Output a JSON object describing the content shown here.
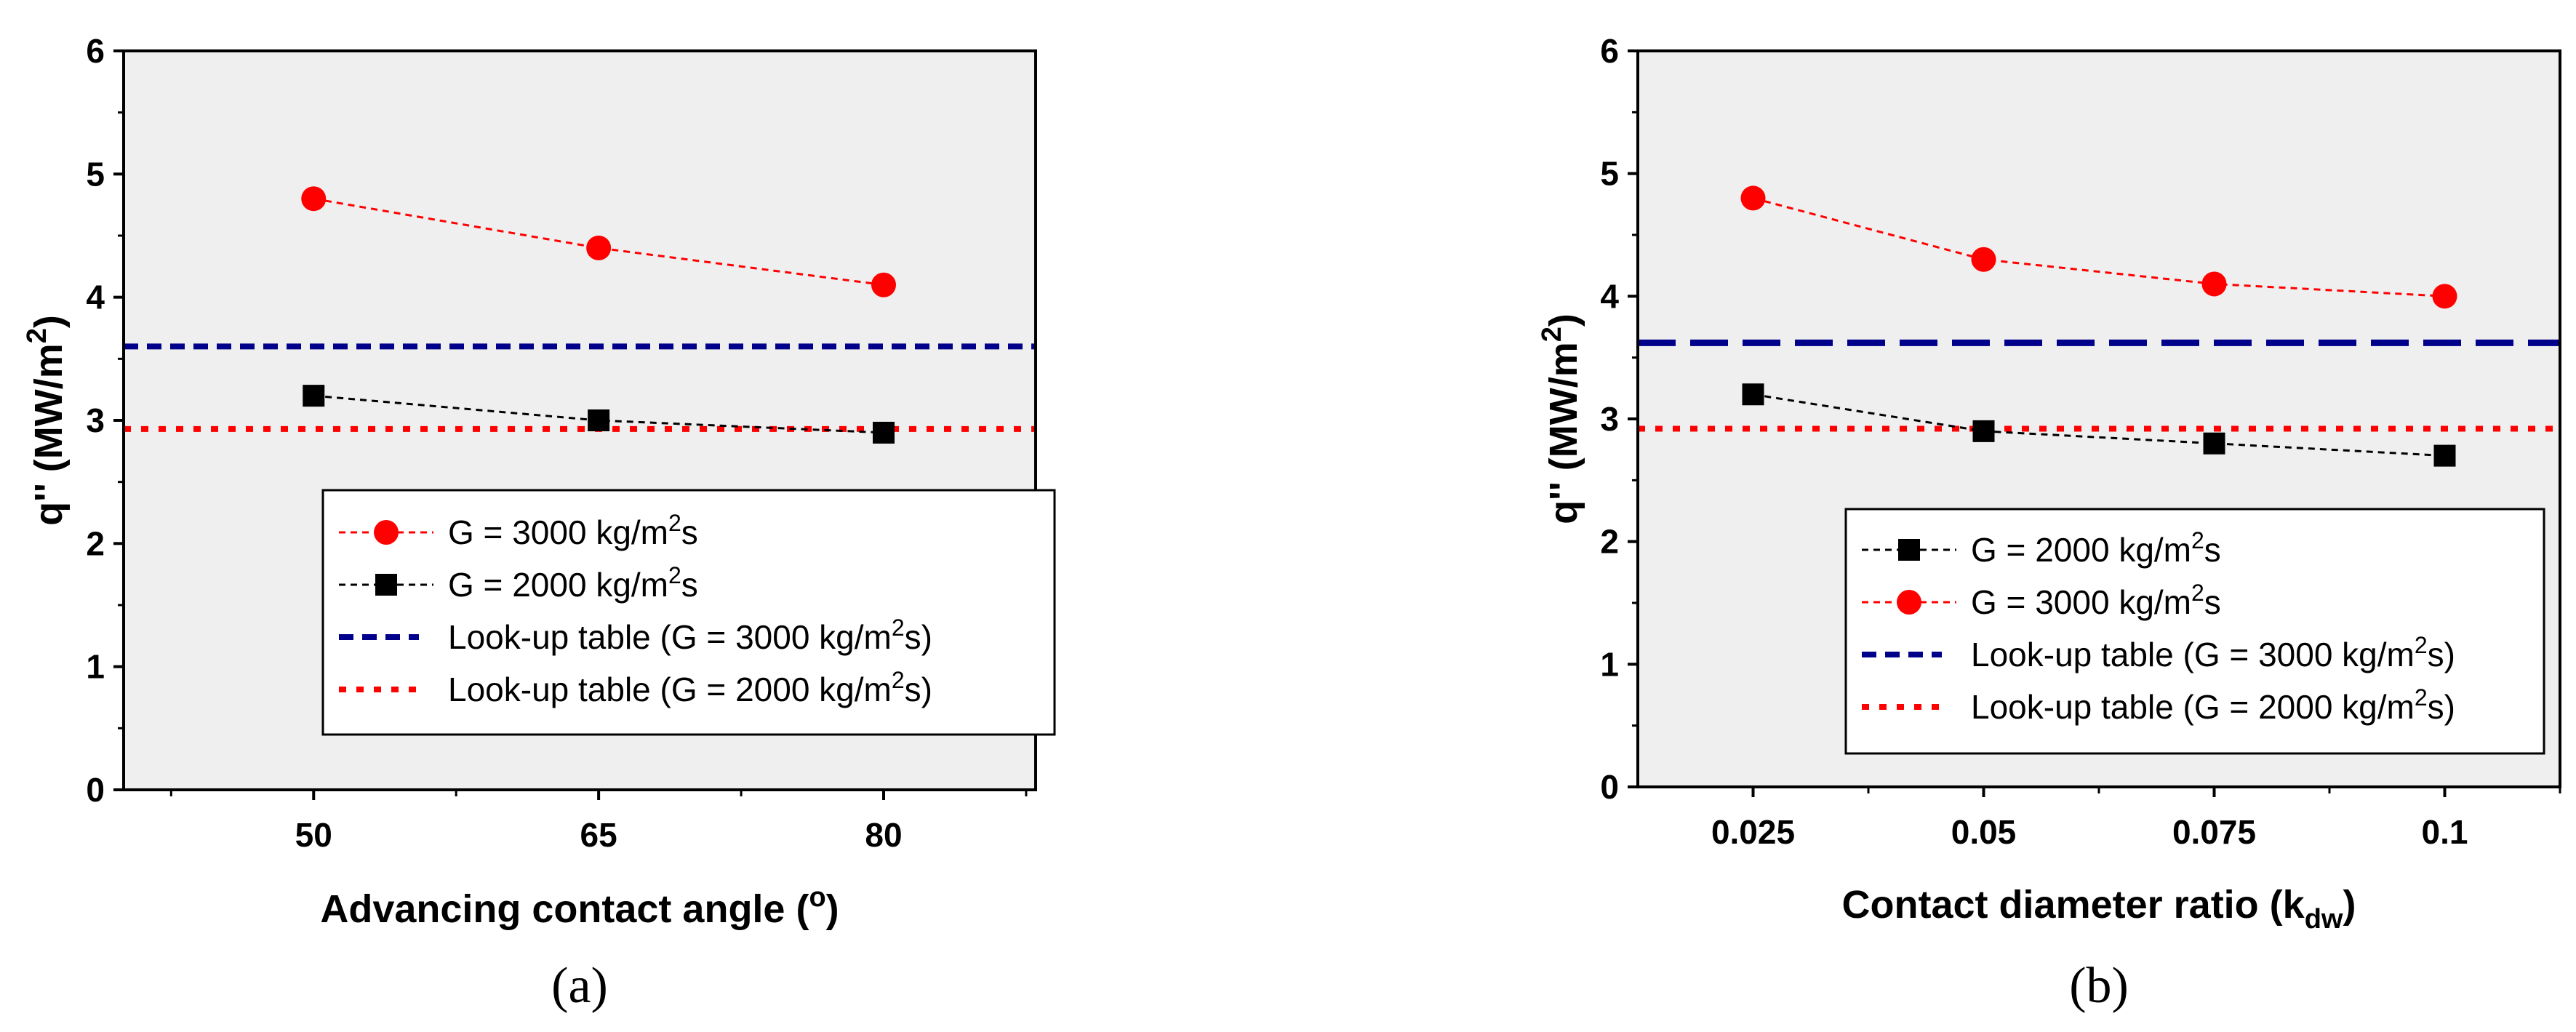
{
  "chart_data": [
    {
      "type": "line",
      "panel_label": "(a)",
      "xlabel": "Advancing contact angle (",
      "xlabel_sup": "o",
      "xlabel_tail": ")",
      "ylabel": "q'' (MW/m",
      "ylabel_sup": "2",
      "ylabel_tail": ")",
      "ylim": [
        0,
        6
      ],
      "xlim": [
        40,
        88
      ],
      "yticks": [
        "0",
        "1",
        "2",
        "3",
        "4",
        "5",
        "6"
      ],
      "xticks": [
        "50",
        "65",
        "80"
      ],
      "xtick_values": [
        50,
        65,
        80
      ],
      "series": [
        {
          "name": "G = 3000 kg/m2s",
          "label": "G = 3000 kg/m",
          "sup": "2",
          "tail": "s",
          "marker": "circle",
          "color": "#ff0000",
          "x": [
            50,
            65,
            80
          ],
          "values": [
            4.8,
            4.4,
            4.1
          ]
        },
        {
          "name": "G = 2000 kg/m2s",
          "label": "G = 2000 kg/m",
          "sup": "2",
          "tail": "s",
          "marker": "square",
          "color": "#000000",
          "x": [
            50,
            65,
            80
          ],
          "values": [
            3.2,
            3.0,
            2.9
          ]
        }
      ],
      "reference_lines": [
        {
          "name": "Look-up table (G = 3000 kg/m2s)",
          "label": "Look-up table (G = 3000 kg/m",
          "sup": "2",
          "tail": "s)",
          "value": 3.6,
          "color": "#00008b",
          "style": "dash"
        },
        {
          "name": "Look-up table (G = 2000 kg/m2s)",
          "label": "Look-up table (G = 2000 kg/m",
          "sup": "2",
          "tail": "s)",
          "value": 2.93,
          "color": "#ff0000",
          "style": "dot"
        }
      ],
      "legend_order": [
        "s0",
        "s1",
        "r0",
        "r1"
      ]
    },
    {
      "type": "line",
      "panel_label": "(b)",
      "xlabel": "Contact diameter ratio (k",
      "xlabel_sub": "dw",
      "xlabel_tail": ")",
      "ylabel": "q'' (MW/m",
      "ylabel_sup": "2",
      "ylabel_tail": ")",
      "ylim": [
        0,
        6
      ],
      "xlim": [
        0.0125,
        0.1125
      ],
      "yticks": [
        "0",
        "1",
        "2",
        "3",
        "4",
        "5",
        "6"
      ],
      "xticks": [
        "0.025",
        "0.05",
        "0.075",
        "0.1"
      ],
      "xtick_values": [
        0.025,
        0.05,
        0.075,
        0.1
      ],
      "series": [
        {
          "name": "G = 2000 kg/m2s",
          "label": "G = 2000 kg/m",
          "sup": "2",
          "tail": "s",
          "marker": "square",
          "color": "#000000",
          "x": [
            0.025,
            0.05,
            0.075,
            0.1
          ],
          "values": [
            3.2,
            2.9,
            2.8,
            2.7
          ]
        },
        {
          "name": "G = 3000 kg/m2s",
          "label": "G = 3000 kg/m",
          "sup": "2",
          "tail": "s",
          "marker": "circle",
          "color": "#ff0000",
          "x": [
            0.025,
            0.05,
            0.075,
            0.1
          ],
          "values": [
            4.8,
            4.3,
            4.1,
            4.0
          ]
        }
      ],
      "reference_lines": [
        {
          "name": "Look-up table (G = 3000 kg/m2s)",
          "label": "Look-up table (G = 3000 kg/m",
          "sup": "2",
          "tail": "s)",
          "value": 3.62,
          "color": "#00008b",
          "style": "longdash"
        },
        {
          "name": "Look-up table (G = 2000 kg/m2s)",
          "label": "Look-up table (G = 2000 kg/m",
          "sup": "2",
          "tail": "s)",
          "value": 2.92,
          "color": "#ff0000",
          "style": "dot"
        }
      ],
      "legend_order": [
        "s0",
        "s1",
        "r0",
        "r1"
      ]
    }
  ]
}
